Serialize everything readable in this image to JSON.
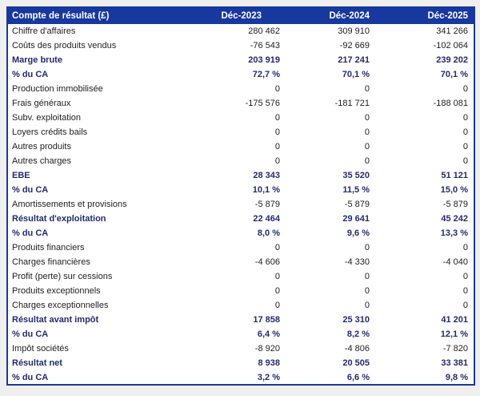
{
  "colors": {
    "header_bg": "#17389e",
    "header_text": "#ffffff",
    "bold_text": "#232a70",
    "text": "#212121",
    "border": "#17389e",
    "page_bg": "#f0efef"
  },
  "table": {
    "title_header": "Compte de résultat (£)",
    "columns": [
      "Déc-2023",
      "Déc-2024",
      "Déc-2025"
    ],
    "rows": [
      {
        "label": "Chiffre d'affaires",
        "values": [
          "280 462",
          "309 910",
          "341 266"
        ],
        "emphasis": false
      },
      {
        "label": "Coûts des produits vendus",
        "values": [
          "-76 543",
          "-92 669",
          "-102 064"
        ],
        "emphasis": false
      },
      {
        "label": "Marge brute",
        "values": [
          "203 919",
          "217 241",
          "239 202"
        ],
        "emphasis": true
      },
      {
        "label": "% du CA",
        "values": [
          "72,7 %",
          "70,1 %",
          "70,1 %"
        ],
        "emphasis": true
      },
      {
        "label": "Production immobilisée",
        "values": [
          "0",
          "0",
          "0"
        ],
        "emphasis": false
      },
      {
        "label": "Frais généraux",
        "values": [
          "-175 576",
          "-181 721",
          "-188 081"
        ],
        "emphasis": false
      },
      {
        "label": "Subv. exploitation",
        "values": [
          "0",
          "0",
          "0"
        ],
        "emphasis": false
      },
      {
        "label": "Loyers crédits bails",
        "values": [
          "0",
          "0",
          "0"
        ],
        "emphasis": false
      },
      {
        "label": "Autres produits",
        "values": [
          "0",
          "0",
          "0"
        ],
        "emphasis": false
      },
      {
        "label": "Autres charges",
        "values": [
          "0",
          "0",
          "0"
        ],
        "emphasis": false
      },
      {
        "label": "EBE",
        "values": [
          "28 343",
          "35 520",
          "51 121"
        ],
        "emphasis": true
      },
      {
        "label": "% du CA",
        "values": [
          "10,1 %",
          "11,5 %",
          "15,0 %"
        ],
        "emphasis": true
      },
      {
        "label": "Amortissements et provisions",
        "values": [
          "-5 879",
          "-5 879",
          "-5 879"
        ],
        "emphasis": false
      },
      {
        "label": "Résultat d'exploitation",
        "values": [
          "22 464",
          "29 641",
          "45 242"
        ],
        "emphasis": true
      },
      {
        "label": "% du CA",
        "values": [
          "8,0 %",
          "9,6 %",
          "13,3 %"
        ],
        "emphasis": true
      },
      {
        "label": "Produits financiers",
        "values": [
          "0",
          "0",
          "0"
        ],
        "emphasis": false
      },
      {
        "label": "Charges financières",
        "values": [
          "-4 606",
          "-4 330",
          "-4 040"
        ],
        "emphasis": false
      },
      {
        "label": "Profit (perte) sur cessions",
        "values": [
          "0",
          "0",
          "0"
        ],
        "emphasis": false
      },
      {
        "label": "Produits exceptionnels",
        "values": [
          "0",
          "0",
          "0"
        ],
        "emphasis": false
      },
      {
        "label": "Charges exceptionnelles",
        "values": [
          "0",
          "0",
          "0"
        ],
        "emphasis": false
      },
      {
        "label": "Résultat avant impôt",
        "values": [
          "17 858",
          "25 310",
          "41 201"
        ],
        "emphasis": true
      },
      {
        "label": "% du CA",
        "values": [
          "6,4 %",
          "8,2 %",
          "12,1 %"
        ],
        "emphasis": true
      },
      {
        "label": "Impôt sociétés",
        "values": [
          "-8 920",
          "-4 806",
          "-7 820"
        ],
        "emphasis": false
      },
      {
        "label": "Résultat net",
        "values": [
          "8 938",
          "20 505",
          "33 381"
        ],
        "emphasis": true
      },
      {
        "label": "% du CA",
        "values": [
          "3,2 %",
          "6,6 %",
          "9,8 %"
        ],
        "emphasis": true
      }
    ]
  }
}
